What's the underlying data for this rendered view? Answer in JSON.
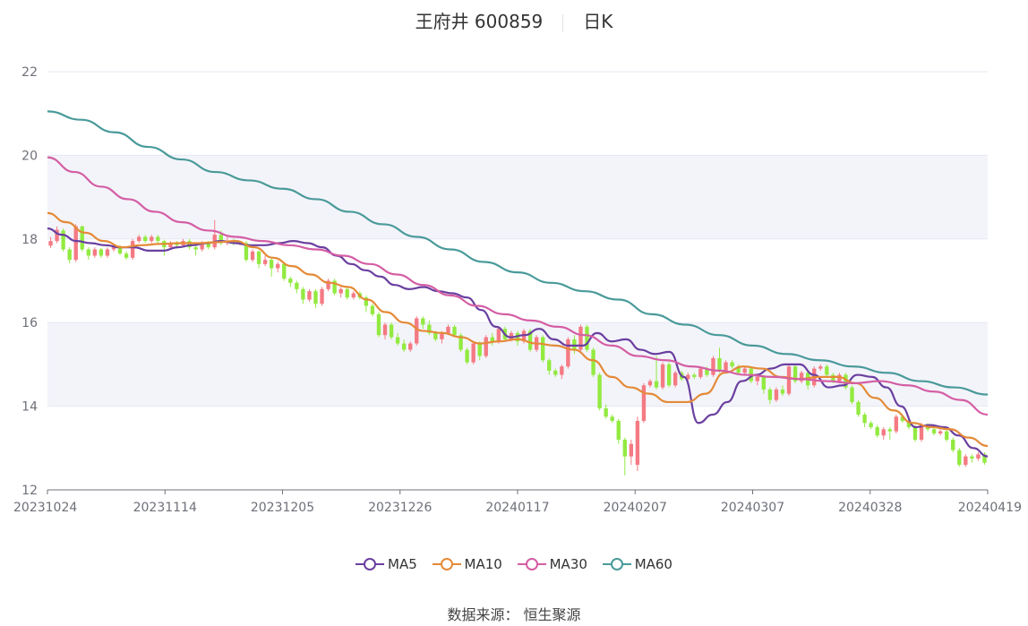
{
  "header": {
    "name": "王府井 600859",
    "period": "日K"
  },
  "footer": {
    "source": "数据来源： 恒生聚源"
  },
  "colors": {
    "up": "#f47a83",
    "down": "#92ea40",
    "MA5": "#6a3fa0",
    "MA10": "#e48a38",
    "MA30": "#d45ea4",
    "MA60": "#4a9a9a",
    "band": "#f3f4fa",
    "grid": "#e4e6f2",
    "axis": "#6e7079"
  },
  "chart_data": {
    "type": "candlestick",
    "ylim": [
      12,
      22
    ],
    "yticks": [
      "12",
      "14",
      "16",
      "18",
      "20",
      "22"
    ],
    "xticks": [
      "20231024",
      "20231114",
      "20231205",
      "20231226",
      "20240117",
      "20240207",
      "20240307",
      "20240328",
      "20240419"
    ],
    "legend": [
      "MA5",
      "MA10",
      "MA30",
      "MA60"
    ],
    "candles": [
      [
        17.84,
        17.95,
        17.78,
        18.05
      ],
      [
        17.95,
        18.22,
        17.9,
        18.3
      ],
      [
        18.2,
        17.75,
        17.7,
        18.25
      ],
      [
        17.75,
        17.5,
        17.42,
        17.8
      ],
      [
        17.5,
        18.3,
        17.45,
        18.35
      ],
      [
        18.3,
        17.75,
        17.7,
        18.32
      ],
      [
        17.75,
        17.6,
        17.5,
        17.8
      ],
      [
        17.6,
        17.75,
        17.55,
        17.8
      ],
      [
        17.75,
        17.6,
        17.55,
        17.78
      ],
      [
        17.6,
        17.75,
        17.55,
        17.8
      ],
      [
        17.75,
        17.8,
        17.7,
        17.85
      ],
      [
        17.8,
        17.65,
        17.62,
        17.85
      ],
      [
        17.65,
        17.55,
        17.5,
        17.7
      ],
      [
        17.55,
        17.95,
        17.5,
        18.0
      ],
      [
        17.95,
        18.05,
        17.9,
        18.1
      ],
      [
        18.05,
        17.95,
        17.9,
        18.1
      ],
      [
        17.95,
        18.05,
        17.9,
        18.1
      ],
      [
        18.05,
        17.95,
        17.9,
        18.1
      ],
      [
        17.95,
        17.8,
        17.6,
        17.98
      ],
      [
        17.8,
        17.9,
        17.75,
        17.95
      ],
      [
        17.9,
        17.85,
        17.8,
        17.95
      ],
      [
        17.85,
        17.95,
        17.8,
        18.0
      ],
      [
        17.95,
        17.8,
        17.75,
        18.0
      ],
      [
        17.8,
        17.75,
        17.6,
        17.85
      ],
      [
        17.75,
        17.9,
        17.7,
        17.95
      ],
      [
        17.9,
        17.8,
        17.75,
        17.95
      ],
      [
        17.8,
        18.1,
        17.75,
        18.45
      ],
      [
        18.1,
        17.9,
        17.85,
        18.2
      ],
      [
        17.9,
        17.95,
        17.85,
        18.05
      ],
      [
        17.95,
        17.9,
        17.85,
        18.0
      ],
      [
        17.9,
        17.9,
        17.85,
        17.95
      ],
      [
        17.9,
        17.5,
        17.45,
        17.95
      ],
      [
        17.5,
        17.7,
        17.45,
        17.75
      ],
      [
        17.7,
        17.4,
        17.3,
        17.72
      ],
      [
        17.4,
        17.5,
        17.35,
        17.6
      ],
      [
        17.5,
        17.3,
        17.1,
        17.55
      ],
      [
        17.3,
        17.4,
        17.2,
        17.45
      ],
      [
        17.4,
        17.05,
        17.0,
        17.45
      ],
      [
        17.05,
        16.95,
        16.85,
        17.1
      ],
      [
        16.95,
        16.8,
        16.7,
        17.0
      ],
      [
        16.8,
        16.55,
        16.45,
        16.85
      ],
      [
        16.55,
        16.75,
        16.5,
        16.8
      ],
      [
        16.75,
        16.45,
        16.35,
        16.8
      ],
      [
        16.45,
        16.8,
        16.4,
        16.85
      ],
      [
        16.8,
        17.0,
        16.75,
        17.05
      ],
      [
        17.0,
        16.7,
        16.65,
        17.05
      ],
      [
        16.7,
        16.8,
        16.6,
        16.85
      ],
      [
        16.8,
        16.6,
        16.55,
        16.85
      ],
      [
        16.6,
        16.7,
        16.55,
        16.75
      ],
      [
        16.7,
        16.6,
        16.55,
        16.75
      ],
      [
        16.6,
        16.4,
        16.25,
        16.65
      ],
      [
        16.4,
        16.2,
        16.15,
        16.45
      ],
      [
        16.2,
        15.7,
        15.65,
        16.25
      ],
      [
        15.7,
        15.95,
        15.6,
        16.0
      ],
      [
        15.95,
        15.65,
        15.6,
        16.0
      ],
      [
        15.65,
        15.5,
        15.45,
        15.75
      ],
      [
        15.5,
        15.35,
        15.3,
        15.6
      ],
      [
        15.35,
        15.5,
        15.3,
        15.55
      ],
      [
        15.5,
        16.1,
        15.45,
        16.15
      ],
      [
        16.1,
        15.95,
        15.85,
        16.15
      ],
      [
        15.95,
        15.75,
        15.7,
        16.05
      ],
      [
        15.75,
        15.6,
        15.55,
        15.8
      ],
      [
        15.6,
        15.75,
        15.5,
        15.8
      ],
      [
        15.75,
        15.9,
        15.7,
        15.95
      ],
      [
        15.9,
        15.7,
        15.65,
        15.95
      ],
      [
        15.7,
        15.35,
        15.3,
        15.75
      ],
      [
        15.35,
        15.05,
        15.0,
        15.4
      ],
      [
        15.05,
        15.5,
        15.0,
        15.55
      ],
      [
        15.5,
        15.2,
        15.1,
        15.55
      ],
      [
        15.2,
        15.65,
        15.15,
        15.7
      ],
      [
        15.65,
        15.55,
        15.45,
        15.75
      ],
      [
        15.55,
        15.85,
        15.5,
        15.9
      ],
      [
        15.85,
        15.6,
        15.55,
        15.9
      ],
      [
        15.6,
        15.75,
        15.55,
        15.8
      ],
      [
        15.75,
        15.55,
        15.45,
        15.8
      ],
      [
        15.55,
        15.8,
        15.5,
        15.85
      ],
      [
        15.8,
        15.35,
        15.3,
        15.85
      ],
      [
        15.35,
        15.65,
        15.3,
        15.7
      ],
      [
        15.65,
        15.1,
        15.05,
        15.7
      ],
      [
        15.1,
        14.85,
        14.75,
        15.15
      ],
      [
        14.85,
        14.75,
        14.7,
        14.9
      ],
      [
        14.75,
        14.95,
        14.65,
        15.0
      ],
      [
        14.95,
        15.6,
        14.9,
        15.65
      ],
      [
        15.6,
        15.35,
        15.25,
        15.7
      ],
      [
        15.35,
        15.9,
        15.3,
        15.95
      ],
      [
        15.9,
        15.35,
        15.3,
        15.95
      ],
      [
        15.35,
        14.75,
        14.7,
        15.4
      ],
      [
        14.75,
        13.95,
        13.9,
        14.8
      ],
      [
        13.95,
        13.75,
        13.7,
        14.05
      ],
      [
        13.75,
        13.65,
        13.6,
        13.8
      ],
      [
        13.65,
        13.2,
        13.1,
        13.7
      ],
      [
        13.2,
        12.8,
        12.35,
        13.25
      ],
      [
        12.8,
        13.1,
        12.6,
        13.2
      ],
      [
        12.6,
        13.65,
        12.45,
        13.75
      ],
      [
        13.65,
        14.5,
        13.6,
        14.55
      ],
      [
        14.5,
        14.6,
        14.45,
        14.65
      ],
      [
        14.6,
        14.45,
        14.4,
        15.2
      ],
      [
        14.45,
        15.0,
        14.4,
        15.05
      ],
      [
        15.0,
        14.5,
        14.45,
        15.05
      ],
      [
        14.5,
        14.8,
        14.45,
        14.85
      ],
      [
        14.8,
        14.65,
        14.6,
        14.85
      ],
      [
        14.65,
        14.75,
        14.6,
        14.8
      ],
      [
        14.75,
        14.7,
        14.65,
        14.8
      ],
      [
        14.7,
        14.9,
        14.65,
        14.95
      ],
      [
        14.9,
        14.75,
        14.7,
        14.95
      ],
      [
        14.75,
        15.15,
        14.7,
        15.2
      ],
      [
        15.15,
        14.85,
        14.8,
        15.4
      ],
      [
        14.85,
        15.05,
        14.8,
        15.1
      ],
      [
        15.05,
        14.95,
        14.9,
        15.1
      ],
      [
        14.95,
        14.8,
        14.75,
        15.0
      ],
      [
        14.8,
        14.9,
        14.75,
        14.95
      ],
      [
        14.9,
        14.6,
        14.55,
        14.95
      ],
      [
        14.6,
        14.7,
        14.5,
        14.75
      ],
      [
        14.7,
        14.4,
        14.3,
        14.75
      ],
      [
        14.4,
        14.15,
        14.05,
        14.45
      ],
      [
        14.15,
        14.4,
        14.1,
        14.45
      ],
      [
        14.4,
        14.3,
        14.25,
        14.5
      ],
      [
        14.3,
        14.95,
        14.25,
        15.0
      ],
      [
        14.95,
        14.6,
        14.55,
        15.0
      ],
      [
        14.6,
        14.8,
        14.55,
        14.85
      ],
      [
        14.8,
        14.5,
        14.4,
        14.85
      ],
      [
        14.5,
        14.9,
        14.45,
        14.95
      ],
      [
        14.9,
        14.95,
        14.85,
        15.0
      ],
      [
        14.95,
        14.75,
        14.7,
        15.0
      ],
      [
        14.75,
        14.6,
        14.55,
        14.8
      ],
      [
        14.6,
        14.75,
        14.55,
        14.8
      ],
      [
        14.75,
        14.45,
        14.4,
        14.8
      ],
      [
        14.45,
        14.1,
        14.05,
        14.5
      ],
      [
        14.1,
        13.8,
        13.75,
        14.15
      ],
      [
        13.8,
        13.6,
        13.5,
        13.85
      ],
      [
        13.6,
        13.5,
        13.45,
        13.65
      ],
      [
        13.5,
        13.3,
        13.25,
        13.55
      ],
      [
        13.3,
        13.45,
        13.2,
        13.5
      ],
      [
        13.45,
        13.4,
        13.2,
        13.5
      ],
      [
        13.4,
        13.75,
        13.35,
        13.8
      ],
      [
        13.75,
        13.65,
        13.6,
        13.8
      ],
      [
        13.65,
        13.5,
        13.45,
        13.7
      ],
      [
        13.5,
        13.2,
        13.15,
        13.55
      ],
      [
        13.2,
        13.55,
        13.15,
        13.6
      ],
      [
        13.55,
        13.45,
        13.4,
        13.6
      ],
      [
        13.45,
        13.35,
        13.3,
        13.5
      ],
      [
        13.35,
        13.4,
        13.3,
        13.45
      ],
      [
        13.4,
        13.2,
        13.15,
        13.45
      ],
      [
        13.2,
        12.95,
        12.9,
        13.25
      ],
      [
        12.95,
        12.6,
        12.55,
        13.0
      ],
      [
        12.6,
        12.8,
        12.55,
        12.85
      ],
      [
        12.8,
        12.75,
        12.65,
        12.85
      ],
      [
        12.75,
        12.85,
        12.7,
        12.9
      ],
      [
        12.85,
        12.65,
        12.6,
        12.9
      ]
    ],
    "series": [
      {
        "name": "MA5",
        "values": [
          18.25,
          18.1,
          17.95,
          17.9,
          17.85,
          17.8,
          17.8,
          17.72,
          17.72,
          17.8,
          17.85,
          17.9,
          17.95,
          17.9,
          17.85,
          17.85,
          17.9,
          17.95,
          17.9,
          17.8,
          17.6,
          17.4,
          17.25,
          17.1,
          16.9,
          16.8,
          16.85,
          16.75,
          16.7,
          16.6,
          16.3,
          15.9,
          15.65,
          15.7,
          15.85,
          15.6,
          15.45,
          15.45,
          15.75,
          15.55,
          15.6,
          15.35,
          15.25,
          15.3,
          14.7,
          13.6,
          13.8,
          14.1,
          14.6,
          14.75,
          14.9,
          15.0,
          15.0,
          14.75,
          14.45,
          14.5,
          14.75,
          14.7,
          14.45,
          14.0,
          13.5,
          13.55,
          13.5,
          13.3,
          13.0,
          12.8
        ]
      },
      {
        "name": "MA10",
        "values": [
          18.62,
          18.4,
          18.15,
          17.95,
          17.8,
          17.85,
          17.88,
          17.9,
          17.9,
          17.92,
          17.95,
          17.8,
          17.55,
          17.35,
          17.15,
          16.95,
          16.85,
          16.55,
          16.25,
          16.0,
          15.8,
          15.75,
          15.65,
          15.5,
          15.55,
          15.6,
          15.5,
          15.45,
          15.35,
          15.1,
          14.7,
          14.45,
          14.3,
          14.1,
          14.1,
          14.3,
          14.8,
          14.95,
          14.9,
          14.7,
          14.65,
          14.7,
          14.7,
          14.55,
          14.2,
          13.9,
          13.6,
          13.5,
          13.45,
          13.25,
          13.05
        ]
      },
      {
        "name": "MA30",
        "values": [
          19.95,
          19.6,
          19.25,
          18.95,
          18.65,
          18.4,
          18.2,
          18.05,
          17.95,
          17.85,
          17.75,
          17.6,
          17.4,
          17.15,
          16.9,
          16.65,
          16.4,
          16.2,
          16.05,
          15.9,
          15.7,
          15.45,
          15.2,
          15.1,
          14.95,
          14.85,
          14.75,
          14.7,
          14.65,
          14.6,
          14.55,
          14.6,
          14.5,
          14.35,
          14.15,
          13.8
        ]
      },
      {
        "name": "MA60",
        "values": [
          21.05,
          20.85,
          20.55,
          20.2,
          19.9,
          19.6,
          19.4,
          19.2,
          18.95,
          18.65,
          18.35,
          18.05,
          17.75,
          17.45,
          17.2,
          16.95,
          16.75,
          16.55,
          16.2,
          15.95,
          15.7,
          15.45,
          15.25,
          15.1,
          14.95,
          14.8,
          14.6,
          14.45,
          14.28
        ]
      }
    ]
  }
}
